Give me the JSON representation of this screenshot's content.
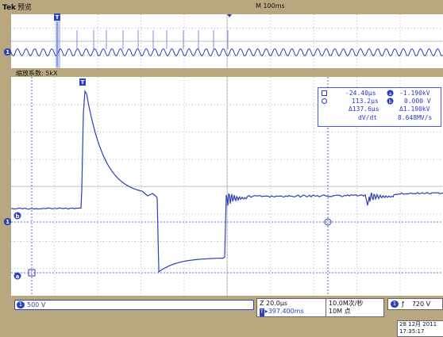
{
  "header": {
    "brand": "Tek",
    "mode": "预览",
    "timebase": "M 100ms"
  },
  "zoom": {
    "label": "缩放系数: 5kX"
  },
  "cursor_readout": {
    "row1_left": "-24.40µs",
    "row1_right": "-1.190kV",
    "row2_left": "113.2µs",
    "row2_right": "0.000 V",
    "row3_left": "Δ137.6µs",
    "row3_right": "Δ1.190kV",
    "row4_center": "dV/dt",
    "row4_right": "8.648MV/s"
  },
  "markers": {
    "ch1": "1",
    "trigger": "T",
    "cursor_a": "a",
    "cursor_b": "b"
  },
  "status": {
    "ch1_number": "1",
    "ch1_scale": "500 V",
    "zoom_time": "Z 20.0µs",
    "zoom_position": "▸397.400ms",
    "sample_rate": "10.0M次/秒",
    "record_length": "10M 点",
    "trigger_channel": "1",
    "trigger_slope": "ƒ",
    "trigger_level": "720 V",
    "date": "28 12月 2011",
    "time": "17:35:17"
  },
  "colors": {
    "trace": "#2f3fb8",
    "grid": "#8a8a8a",
    "background": "#ffffff",
    "bezel": "#b9a87f"
  }
}
